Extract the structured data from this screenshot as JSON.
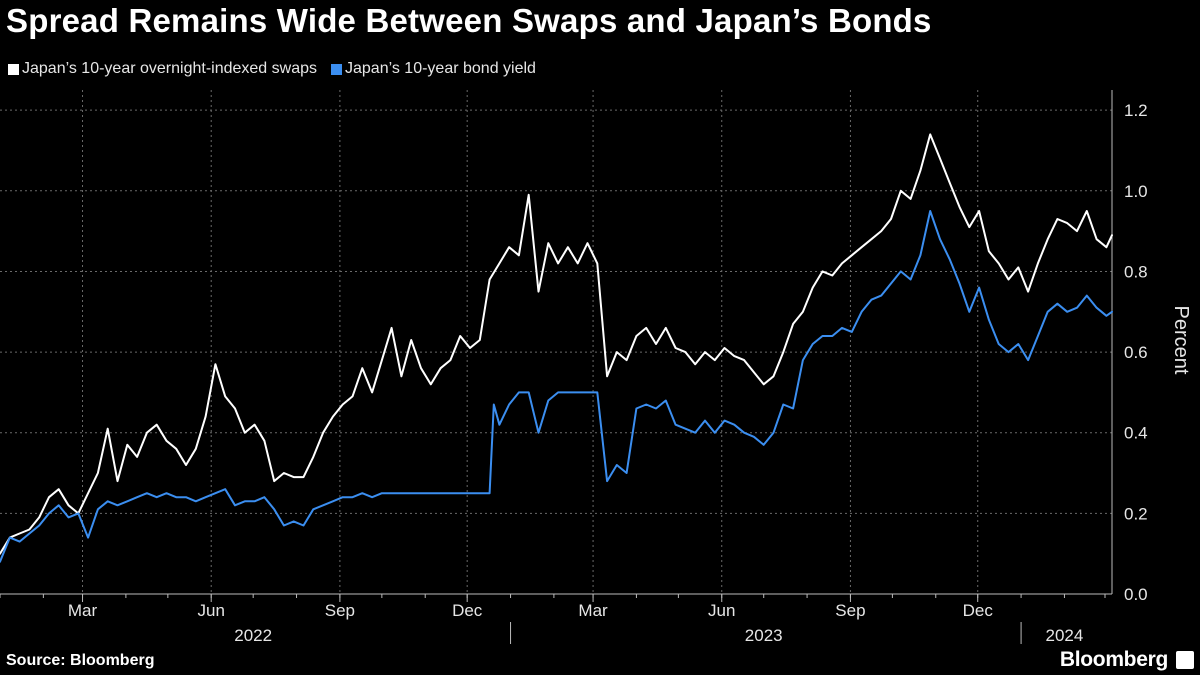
{
  "title": "Spread Remains Wide Between Swaps and Japan’s Bonds",
  "source": "Source: Bloomberg",
  "logo": "Bloomberg",
  "chart_data": {
    "type": "line",
    "title": "Spread Remains Wide Between Swaps and Japan’s Bonds",
    "ylabel": "Percent",
    "xlabel": "",
    "ylim": [
      0,
      1.25
    ],
    "xlim": [
      "2022-01-01",
      "2024-03-06"
    ],
    "yticks": [
      0.0,
      0.2,
      0.4,
      0.6,
      0.8,
      1.0,
      1.2
    ],
    "ytick_labels": [
      "0.0",
      "0.2",
      "0.4",
      "0.6",
      "0.8",
      "1.0",
      "1.2"
    ],
    "month_ticks": [
      {
        "label": "Mar",
        "date": "2022-03-01"
      },
      {
        "label": "Jun",
        "date": "2022-06-01"
      },
      {
        "label": "Sep",
        "date": "2022-09-01"
      },
      {
        "label": "Dec",
        "date": "2022-12-01"
      },
      {
        "label": "Mar",
        "date": "2023-03-01"
      },
      {
        "label": "Jun",
        "date": "2023-06-01"
      },
      {
        "label": "Sep",
        "date": "2023-09-01"
      },
      {
        "label": "Dec",
        "date": "2023-12-01"
      }
    ],
    "year_labels": [
      {
        "label": "2022",
        "center": "2022-07-01"
      },
      {
        "label": "2023",
        "center": "2023-07-01"
      },
      {
        "label": "2024",
        "center": "2024-02-01"
      }
    ],
    "year_dividers": [
      "2023-01-01",
      "2024-01-01"
    ],
    "grid": true,
    "legend_position": "top-left",
    "series": [
      {
        "name": "Japan’s 10-year overnight-indexed swaps",
        "color": "#ffffff",
        "points": [
          [
            "2022-01-01",
            0.1
          ],
          [
            "2022-01-08",
            0.14
          ],
          [
            "2022-01-15",
            0.15
          ],
          [
            "2022-01-22",
            0.16
          ],
          [
            "2022-01-29",
            0.19
          ],
          [
            "2022-02-05",
            0.24
          ],
          [
            "2022-02-12",
            0.26
          ],
          [
            "2022-02-19",
            0.22
          ],
          [
            "2022-02-26",
            0.2
          ],
          [
            "2022-03-05",
            0.25
          ],
          [
            "2022-03-12",
            0.3
          ],
          [
            "2022-03-19",
            0.41
          ],
          [
            "2022-03-26",
            0.28
          ],
          [
            "2022-04-02",
            0.37
          ],
          [
            "2022-04-09",
            0.34
          ],
          [
            "2022-04-16",
            0.4
          ],
          [
            "2022-04-23",
            0.42
          ],
          [
            "2022-04-30",
            0.38
          ],
          [
            "2022-05-07",
            0.36
          ],
          [
            "2022-05-14",
            0.32
          ],
          [
            "2022-05-21",
            0.36
          ],
          [
            "2022-05-28",
            0.44
          ],
          [
            "2022-06-04",
            0.57
          ],
          [
            "2022-06-11",
            0.49
          ],
          [
            "2022-06-18",
            0.46
          ],
          [
            "2022-06-25",
            0.4
          ],
          [
            "2022-07-02",
            0.42
          ],
          [
            "2022-07-09",
            0.38
          ],
          [
            "2022-07-16",
            0.28
          ],
          [
            "2022-07-23",
            0.3
          ],
          [
            "2022-07-30",
            0.29
          ],
          [
            "2022-08-06",
            0.29
          ],
          [
            "2022-08-13",
            0.34
          ],
          [
            "2022-08-20",
            0.4
          ],
          [
            "2022-08-27",
            0.44
          ],
          [
            "2022-09-03",
            0.47
          ],
          [
            "2022-09-10",
            0.49
          ],
          [
            "2022-09-17",
            0.56
          ],
          [
            "2022-09-24",
            0.5
          ],
          [
            "2022-10-01",
            0.58
          ],
          [
            "2022-10-08",
            0.66
          ],
          [
            "2022-10-15",
            0.54
          ],
          [
            "2022-10-22",
            0.63
          ],
          [
            "2022-10-29",
            0.56
          ],
          [
            "2022-11-05",
            0.52
          ],
          [
            "2022-11-12",
            0.56
          ],
          [
            "2022-11-19",
            0.58
          ],
          [
            "2022-11-26",
            0.64
          ],
          [
            "2022-12-03",
            0.61
          ],
          [
            "2022-12-10",
            0.63
          ],
          [
            "2022-12-17",
            0.78
          ],
          [
            "2022-12-24",
            0.82
          ],
          [
            "2022-12-31",
            0.86
          ],
          [
            "2023-01-07",
            0.84
          ],
          [
            "2023-01-14",
            0.99
          ],
          [
            "2023-01-21",
            0.75
          ],
          [
            "2023-01-28",
            0.87
          ],
          [
            "2023-02-04",
            0.82
          ],
          [
            "2023-02-11",
            0.86
          ],
          [
            "2023-02-18",
            0.82
          ],
          [
            "2023-02-25",
            0.87
          ],
          [
            "2023-03-04",
            0.82
          ],
          [
            "2023-03-11",
            0.54
          ],
          [
            "2023-03-18",
            0.6
          ],
          [
            "2023-03-25",
            0.58
          ],
          [
            "2023-04-01",
            0.64
          ],
          [
            "2023-04-08",
            0.66
          ],
          [
            "2023-04-15",
            0.62
          ],
          [
            "2023-04-22",
            0.66
          ],
          [
            "2023-04-29",
            0.61
          ],
          [
            "2023-05-06",
            0.6
          ],
          [
            "2023-05-13",
            0.57
          ],
          [
            "2023-05-20",
            0.6
          ],
          [
            "2023-05-27",
            0.58
          ],
          [
            "2023-06-03",
            0.61
          ],
          [
            "2023-06-10",
            0.59
          ],
          [
            "2023-06-17",
            0.58
          ],
          [
            "2023-06-24",
            0.55
          ],
          [
            "2023-07-01",
            0.52
          ],
          [
            "2023-07-08",
            0.54
          ],
          [
            "2023-07-15",
            0.6
          ],
          [
            "2023-07-22",
            0.67
          ],
          [
            "2023-07-29",
            0.7
          ],
          [
            "2023-08-05",
            0.76
          ],
          [
            "2023-08-12",
            0.8
          ],
          [
            "2023-08-19",
            0.79
          ],
          [
            "2023-08-26",
            0.82
          ],
          [
            "2023-09-02",
            0.84
          ],
          [
            "2023-09-09",
            0.86
          ],
          [
            "2023-09-16",
            0.88
          ],
          [
            "2023-09-23",
            0.9
          ],
          [
            "2023-09-30",
            0.93
          ],
          [
            "2023-10-07",
            1.0
          ],
          [
            "2023-10-14",
            0.98
          ],
          [
            "2023-10-21",
            1.05
          ],
          [
            "2023-10-28",
            1.14
          ],
          [
            "2023-11-04",
            1.08
          ],
          [
            "2023-11-11",
            1.02
          ],
          [
            "2023-11-18",
            0.96
          ],
          [
            "2023-11-25",
            0.91
          ],
          [
            "2023-12-02",
            0.95
          ],
          [
            "2023-12-09",
            0.85
          ],
          [
            "2023-12-16",
            0.82
          ],
          [
            "2023-12-23",
            0.78
          ],
          [
            "2023-12-30",
            0.81
          ],
          [
            "2024-01-06",
            0.75
          ],
          [
            "2024-01-13",
            0.82
          ],
          [
            "2024-01-20",
            0.88
          ],
          [
            "2024-01-27",
            0.93
          ],
          [
            "2024-02-03",
            0.92
          ],
          [
            "2024-02-10",
            0.9
          ],
          [
            "2024-02-17",
            0.95
          ],
          [
            "2024-02-24",
            0.88
          ],
          [
            "2024-03-02",
            0.86
          ],
          [
            "2024-03-06",
            0.89
          ]
        ]
      },
      {
        "name": "Japan’s 10-year bond yield",
        "color": "#3b8ef0",
        "points": [
          [
            "2022-01-01",
            0.08
          ],
          [
            "2022-01-08",
            0.14
          ],
          [
            "2022-01-15",
            0.13
          ],
          [
            "2022-01-22",
            0.15
          ],
          [
            "2022-01-29",
            0.17
          ],
          [
            "2022-02-05",
            0.2
          ],
          [
            "2022-02-12",
            0.22
          ],
          [
            "2022-02-19",
            0.19
          ],
          [
            "2022-02-26",
            0.2
          ],
          [
            "2022-03-05",
            0.14
          ],
          [
            "2022-03-12",
            0.21
          ],
          [
            "2022-03-19",
            0.23
          ],
          [
            "2022-03-26",
            0.22
          ],
          [
            "2022-04-02",
            0.23
          ],
          [
            "2022-04-09",
            0.24
          ],
          [
            "2022-04-16",
            0.25
          ],
          [
            "2022-04-23",
            0.24
          ],
          [
            "2022-04-30",
            0.25
          ],
          [
            "2022-05-07",
            0.24
          ],
          [
            "2022-05-14",
            0.24
          ],
          [
            "2022-05-21",
            0.23
          ],
          [
            "2022-05-28",
            0.24
          ],
          [
            "2022-06-04",
            0.25
          ],
          [
            "2022-06-11",
            0.26
          ],
          [
            "2022-06-18",
            0.22
          ],
          [
            "2022-06-25",
            0.23
          ],
          [
            "2022-07-02",
            0.23
          ],
          [
            "2022-07-09",
            0.24
          ],
          [
            "2022-07-16",
            0.21
          ],
          [
            "2022-07-23",
            0.17
          ],
          [
            "2022-07-30",
            0.18
          ],
          [
            "2022-08-06",
            0.17
          ],
          [
            "2022-08-13",
            0.21
          ],
          [
            "2022-08-20",
            0.22
          ],
          [
            "2022-08-27",
            0.23
          ],
          [
            "2022-09-03",
            0.24
          ],
          [
            "2022-09-10",
            0.24
          ],
          [
            "2022-09-17",
            0.25
          ],
          [
            "2022-09-24",
            0.24
          ],
          [
            "2022-10-01",
            0.25
          ],
          [
            "2022-10-08",
            0.25
          ],
          [
            "2022-10-15",
            0.25
          ],
          [
            "2022-10-22",
            0.25
          ],
          [
            "2022-10-29",
            0.25
          ],
          [
            "2022-11-05",
            0.25
          ],
          [
            "2022-11-12",
            0.25
          ],
          [
            "2022-11-19",
            0.25
          ],
          [
            "2022-11-26",
            0.25
          ],
          [
            "2022-12-03",
            0.25
          ],
          [
            "2022-12-10",
            0.25
          ],
          [
            "2022-12-17",
            0.25
          ],
          [
            "2022-12-20",
            0.47
          ],
          [
            "2022-12-24",
            0.42
          ],
          [
            "2022-12-31",
            0.47
          ],
          [
            "2023-01-07",
            0.5
          ],
          [
            "2023-01-14",
            0.5
          ],
          [
            "2023-01-21",
            0.4
          ],
          [
            "2023-01-28",
            0.48
          ],
          [
            "2023-02-04",
            0.5
          ],
          [
            "2023-02-11",
            0.5
          ],
          [
            "2023-02-18",
            0.5
          ],
          [
            "2023-02-25",
            0.5
          ],
          [
            "2023-03-04",
            0.5
          ],
          [
            "2023-03-11",
            0.28
          ],
          [
            "2023-03-18",
            0.32
          ],
          [
            "2023-03-25",
            0.3
          ],
          [
            "2023-04-01",
            0.46
          ],
          [
            "2023-04-08",
            0.47
          ],
          [
            "2023-04-15",
            0.46
          ],
          [
            "2023-04-22",
            0.48
          ],
          [
            "2023-04-29",
            0.42
          ],
          [
            "2023-05-06",
            0.41
          ],
          [
            "2023-05-13",
            0.4
          ],
          [
            "2023-05-20",
            0.43
          ],
          [
            "2023-05-27",
            0.4
          ],
          [
            "2023-06-03",
            0.43
          ],
          [
            "2023-06-10",
            0.42
          ],
          [
            "2023-06-17",
            0.4
          ],
          [
            "2023-06-24",
            0.39
          ],
          [
            "2023-07-01",
            0.37
          ],
          [
            "2023-07-08",
            0.4
          ],
          [
            "2023-07-15",
            0.47
          ],
          [
            "2023-07-22",
            0.46
          ],
          [
            "2023-07-29",
            0.58
          ],
          [
            "2023-08-05",
            0.62
          ],
          [
            "2023-08-12",
            0.64
          ],
          [
            "2023-08-19",
            0.64
          ],
          [
            "2023-08-26",
            0.66
          ],
          [
            "2023-09-02",
            0.65
          ],
          [
            "2023-09-09",
            0.7
          ],
          [
            "2023-09-16",
            0.73
          ],
          [
            "2023-09-23",
            0.74
          ],
          [
            "2023-09-30",
            0.77
          ],
          [
            "2023-10-07",
            0.8
          ],
          [
            "2023-10-14",
            0.78
          ],
          [
            "2023-10-21",
            0.84
          ],
          [
            "2023-10-28",
            0.95
          ],
          [
            "2023-11-04",
            0.88
          ],
          [
            "2023-11-11",
            0.83
          ],
          [
            "2023-11-18",
            0.77
          ],
          [
            "2023-11-25",
            0.7
          ],
          [
            "2023-12-02",
            0.76
          ],
          [
            "2023-12-09",
            0.68
          ],
          [
            "2023-12-16",
            0.62
          ],
          [
            "2023-12-23",
            0.6
          ],
          [
            "2023-12-30",
            0.62
          ],
          [
            "2024-01-06",
            0.58
          ],
          [
            "2024-01-13",
            0.64
          ],
          [
            "2024-01-20",
            0.7
          ],
          [
            "2024-01-27",
            0.72
          ],
          [
            "2024-02-03",
            0.7
          ],
          [
            "2024-02-10",
            0.71
          ],
          [
            "2024-02-17",
            0.74
          ],
          [
            "2024-02-24",
            0.71
          ],
          [
            "2024-03-02",
            0.69
          ],
          [
            "2024-03-06",
            0.7
          ]
        ]
      }
    ]
  }
}
